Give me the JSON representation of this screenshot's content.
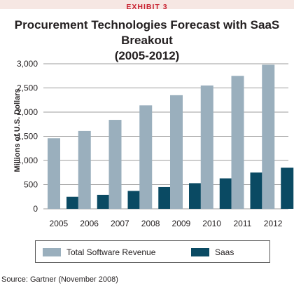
{
  "header": {
    "exhibit_label": "EXHIBIT 3"
  },
  "source_text": "Source: Gartner (November 2008)",
  "colors": {
    "total": "#9aafbd",
    "saas": "#0a4a63",
    "exhibit_bg": "#f6e7e3",
    "exhibit_text": "#c8202f"
  },
  "chart_data": {
    "type": "bar",
    "title_line1": "Procurement Technologies Forecast with SaaS Breakout",
    "title_line2": "(2005-2012)",
    "xlabel": "",
    "ylabel": "Millions of U.S. Dollars",
    "categories": [
      "2005",
      "2006",
      "2007",
      "2008",
      "2009",
      "2010",
      "2011",
      "2012"
    ],
    "series": [
      {
        "name": "Total Software Revenue",
        "values": [
          1460,
          1610,
          1840,
          2140,
          2350,
          2550,
          2750,
          2980
        ]
      },
      {
        "name": "Saas",
        "values": [
          250,
          290,
          370,
          450,
          530,
          630,
          750,
          850
        ]
      }
    ],
    "ylim": [
      0,
      3000
    ],
    "yticks": [
      "0",
      "500",
      "1,000",
      "1,500",
      "2,000",
      "2,500",
      "3,000"
    ],
    "ytick_values": [
      0,
      500,
      1000,
      1500,
      2000,
      2500,
      3000
    ],
    "grid": true,
    "legend_position": "bottom"
  }
}
